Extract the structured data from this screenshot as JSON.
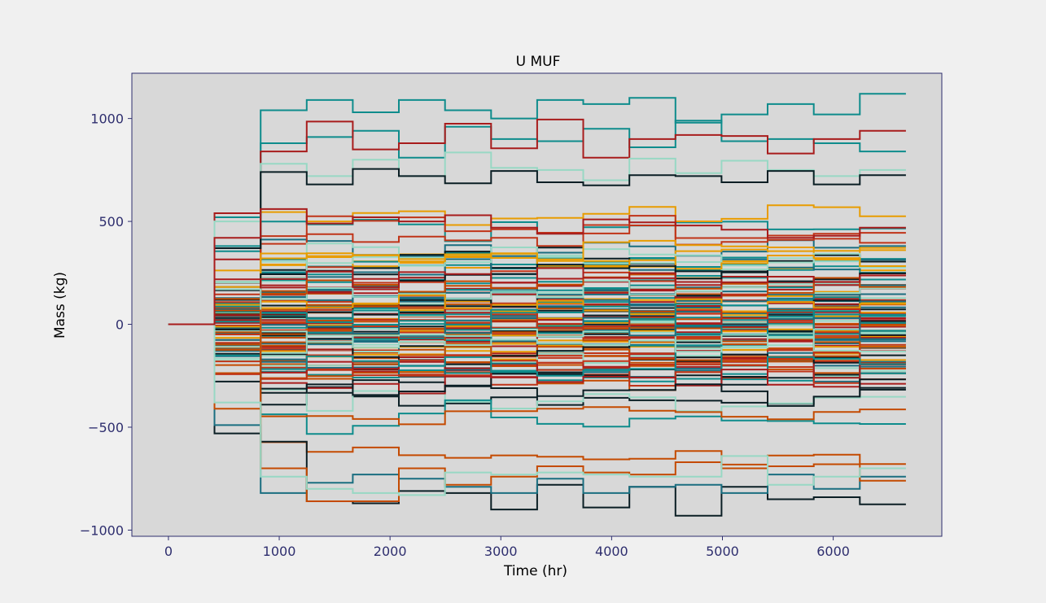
{
  "chart_data": {
    "type": "line",
    "step": true,
    "title": "U MUF",
    "xlabel": "Time (hr)",
    "ylabel": "Mass (kg)",
    "xlim": [
      -330,
      6980
    ],
    "ylim": [
      -1030,
      1220
    ],
    "xticks": [
      0,
      1000,
      2000,
      3000,
      4000,
      5000,
      6000
    ],
    "xtick_labels": [
      "0",
      "1000",
      "2000",
      "3000",
      "4000",
      "5000",
      "6000"
    ],
    "yticks": [
      1000,
      500,
      0,
      -500,
      -1000
    ],
    "ytick_labels": [
      "1000",
      "500",
      "0",
      "−500",
      "−1000"
    ],
    "grid": false,
    "legend": "none",
    "step_edges": [
      0,
      416,
      832,
      1248,
      1664,
      2080,
      2496,
      2912,
      3328,
      3744,
      4160,
      4576,
      4992,
      5408,
      5824,
      6240,
      6656
    ],
    "palette": [
      "#0e8c8c",
      "#a81c1c",
      "#98d8c4",
      "#c44a00",
      "#e89c00",
      "#0a1e24",
      "#1a6e80",
      "#c03418"
    ],
    "colors": {
      "plot_bg": "#d8d8d8",
      "figure_bg": "#f0f0f0",
      "frame": "#2e2e6e",
      "tick": "#2e2e6e"
    },
    "series_count": 100,
    "random_seed": 7,
    "highlighted_series": [
      {
        "color": "#0e8c8c",
        "values": [
          0,
          520,
          1040,
          1090,
          1030,
          1090,
          1040,
          1000,
          1090,
          1070,
          1100,
          980,
          1020,
          1070,
          1020,
          1120
        ]
      },
      {
        "color": "#0e8c8c",
        "values": [
          0,
          380,
          880,
          910,
          940,
          810,
          960,
          900,
          890,
          950,
          860,
          990,
          890,
          900,
          880,
          840
        ]
      },
      {
        "color": "#a81c1c",
        "values": [
          0,
          540,
          840,
          985,
          850,
          880,
          975,
          855,
          995,
          810,
          900,
          920,
          915,
          830,
          900,
          940
        ]
      },
      {
        "color": "#98d8c4",
        "values": [
          0,
          500,
          780,
          720,
          800,
          720,
          835,
          760,
          750,
          700,
          805,
          735,
          795,
          750,
          720,
          750
        ]
      },
      {
        "color": "#0a1e24",
        "values": [
          0,
          370,
          740,
          680,
          755,
          720,
          685,
          745,
          690,
          675,
          725,
          720,
          690,
          745,
          680,
          725
        ]
      },
      {
        "color": "#0a1e24",
        "values": [
          0,
          -530,
          -570,
          -860,
          -870,
          -810,
          -820,
          -900,
          -780,
          -890,
          -790,
          -930,
          -790,
          -850,
          -840,
          -875
        ]
      },
      {
        "color": "#1a6e80",
        "values": [
          0,
          -490,
          -820,
          -770,
          -730,
          -750,
          -790,
          -820,
          -750,
          -820,
          -790,
          -780,
          -820,
          -730,
          -800,
          -740
        ]
      },
      {
        "color": "#c44a00",
        "values": [
          0,
          -410,
          -700,
          -860,
          -860,
          -700,
          -780,
          -740,
          -690,
          -720,
          -730,
          -670,
          -700,
          -690,
          -680,
          -760
        ]
      },
      {
        "color": "#98d8c4",
        "values": [
          0,
          -380,
          -740,
          -800,
          -820,
          -830,
          -720,
          -730,
          -720,
          -730,
          -740,
          -740,
          -640,
          -780,
          -740,
          -700
        ]
      },
      {
        "color": "#a81c1c",
        "values": [
          0,
          420,
          560,
          490,
          520,
          500,
          530,
          470,
          440,
          510,
          495,
          480,
          460,
          420,
          430,
          470
        ]
      }
    ]
  }
}
